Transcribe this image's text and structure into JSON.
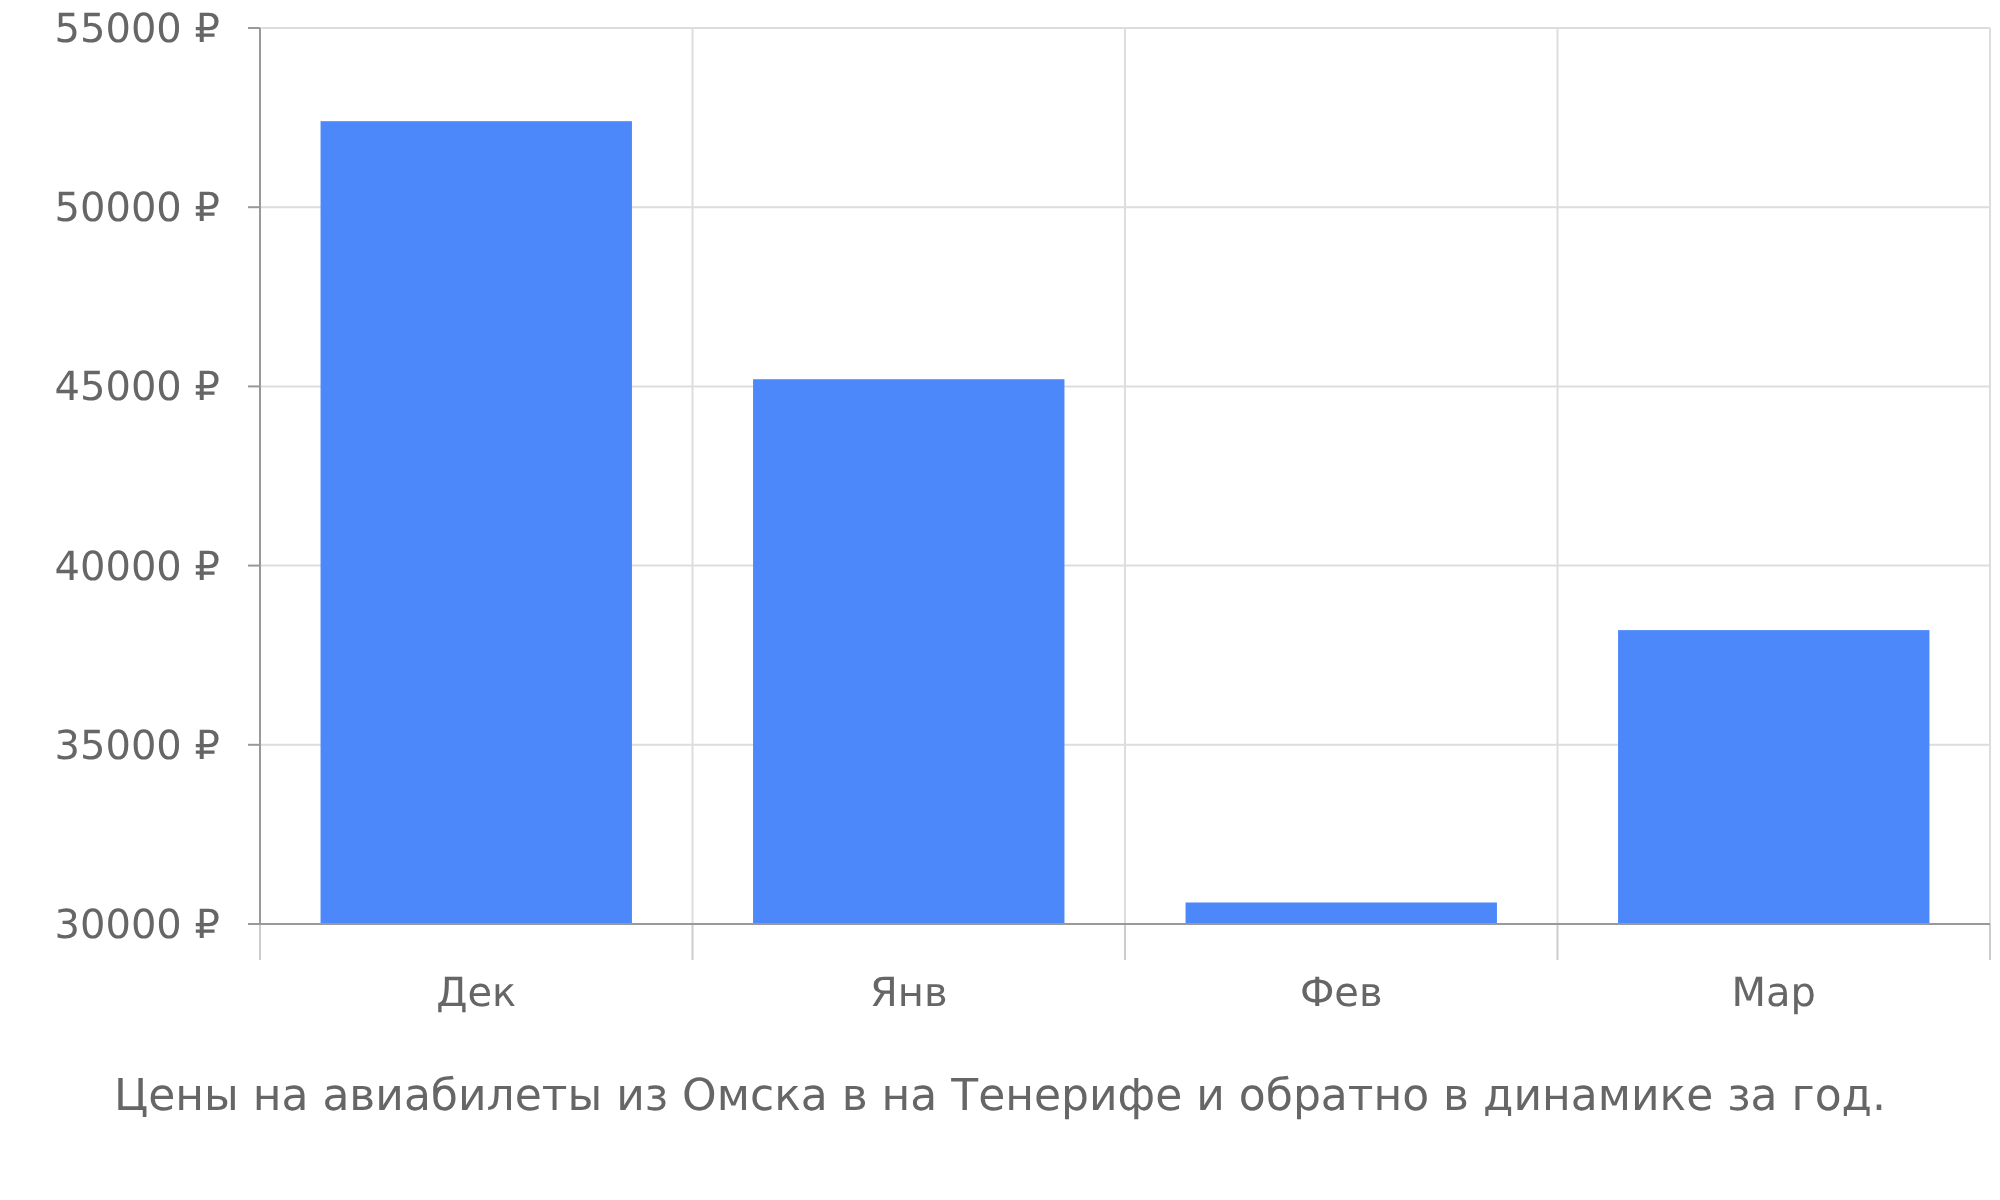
{
  "chart_data": {
    "type": "bar",
    "title": "Цены на авиабилеты из Омска в на Тенерифе и обратно в динамике за год.",
    "categories": [
      "Дек",
      "Янв",
      "Фев",
      "Мар"
    ],
    "values": [
      52400,
      45200,
      30600,
      38200
    ],
    "color": "#4d88fa",
    "ylim": [
      30000,
      55000
    ],
    "yticks": [
      {
        "value": 30000,
        "label": "30000 ₽"
      },
      {
        "value": 35000,
        "label": "35000 ₽"
      },
      {
        "value": 40000,
        "label": "40000 ₽"
      },
      {
        "value": 45000,
        "label": "45000 ₽"
      },
      {
        "value": 50000,
        "label": "50000 ₽"
      },
      {
        "value": 55000,
        "label": "55000 ₽"
      }
    ],
    "grid": true
  }
}
